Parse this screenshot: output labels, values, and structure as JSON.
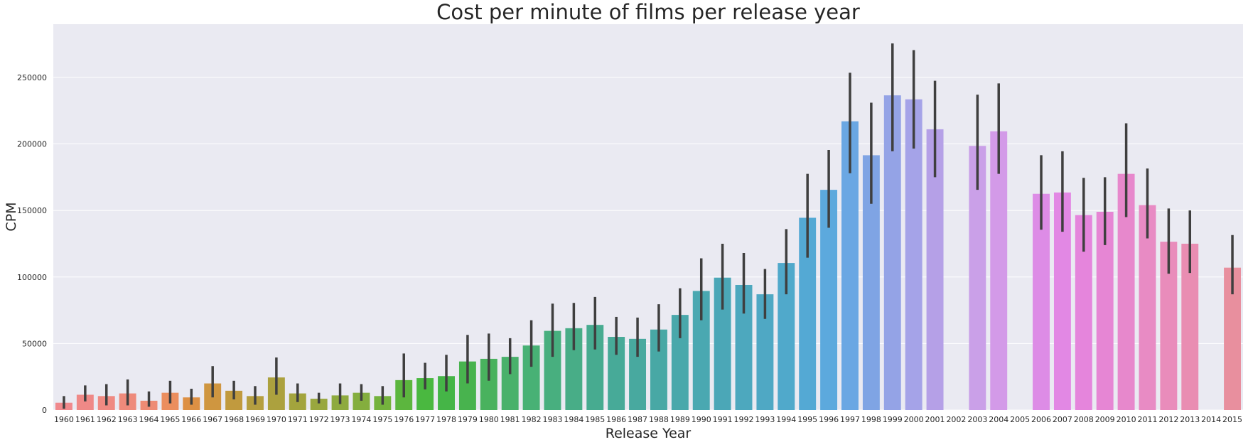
{
  "chart_data": {
    "type": "bar",
    "title": "Cost per minute of films per release year",
    "xlabel": "Release Year",
    "ylabel": "CPM",
    "ylim": [
      0,
      290000
    ],
    "yticks": [
      0,
      50000,
      100000,
      150000,
      200000,
      250000
    ],
    "grid": true,
    "legend": "none",
    "error_bars": true,
    "categories": [
      "1960",
      "1961",
      "1962",
      "1963",
      "1964",
      "1965",
      "1966",
      "1967",
      "1968",
      "1969",
      "1970",
      "1971",
      "1972",
      "1973",
      "1974",
      "1975",
      "1976",
      "1977",
      "1978",
      "1979",
      "1980",
      "1981",
      "1982",
      "1983",
      "1984",
      "1985",
      "1986",
      "1987",
      "1988",
      "1989",
      "1990",
      "1991",
      "1992",
      "1993",
      "1994",
      "1995",
      "1996",
      "1997",
      "1998",
      "1999",
      "2000",
      "2001",
      "2002",
      "2003",
      "2004",
      "2005",
      "2006",
      "2007",
      "2008",
      "2009",
      "2010",
      "2011",
      "2012",
      "2013",
      "2014",
      "2015"
    ],
    "values": [
      5500,
      11500,
      10500,
      12500,
      7000,
      13000,
      9500,
      20000,
      14500,
      10500,
      24500,
      12500,
      8500,
      11000,
      13000,
      10500,
      22500,
      24000,
      25500,
      36500,
      38500,
      40000,
      48500,
      59500,
      61500,
      64000,
      55000,
      53500,
      60500,
      71500,
      89500,
      99500,
      94000,
      87000,
      110500,
      144500,
      165500,
      217000,
      191500,
      236500,
      233500,
      211000,
      null,
      198500,
      209500,
      null,
      162500,
      163500,
      146500,
      149000,
      177500,
      154000,
      126500,
      125000,
      null,
      107000
    ],
    "error_low": [
      1000,
      6500,
      3500,
      3500,
      2500,
      5000,
      4000,
      9500,
      8000,
      4000,
      11500,
      6000,
      5000,
      4500,
      7000,
      4000,
      9500,
      15500,
      14000,
      20000,
      22000,
      27000,
      32500,
      40000,
      45000,
      45500,
      41500,
      40000,
      44000,
      54000,
      67500,
      75500,
      72500,
      68500,
      87000,
      114500,
      137000,
      178000,
      155000,
      194500,
      196500,
      175000,
      null,
      165500,
      177500,
      null,
      135500,
      134000,
      119000,
      124000,
      145000,
      129000,
      102500,
      103000,
      null,
      87000
    ],
    "error_high": [
      10500,
      18500,
      19500,
      23000,
      14000,
      22000,
      16000,
      33000,
      22000,
      18000,
      39500,
      20000,
      13000,
      20000,
      19500,
      18000,
      42500,
      35500,
      41500,
      56500,
      57500,
      54000,
      67500,
      80000,
      80500,
      85000,
      70000,
      69500,
      79500,
      91500,
      114000,
      125000,
      118000,
      106000,
      136000,
      177500,
      195500,
      253500,
      231000,
      275500,
      270500,
      247500,
      null,
      237000,
      245500,
      null,
      191500,
      194500,
      174500,
      175000,
      215500,
      181500,
      151500,
      150000,
      null,
      131500
    ],
    "colors": [
      "#f0898d",
      "#ef8987",
      "#ef8a82",
      "#ee8a7b",
      "#ee8b74",
      "#eb8e5e",
      "#dd9044",
      "#cf9640",
      "#c19a3e",
      "#b59e40",
      "#aca13e",
      "#a3a43d",
      "#99a73e",
      "#8eaa3e",
      "#84ae3e",
      "#74b23d",
      "#5cb63e",
      "#4ab840",
      "#45b547",
      "#48b34e",
      "#49b25e",
      "#49b16b",
      "#48b175",
      "#48af7f",
      "#48ad87",
      "#47ab90",
      "#47aa98",
      "#48a99f",
      "#48a8a5",
      "#49a8ab",
      "#4aa8b1",
      "#4ba7b7",
      "#4da8be",
      "#4fa8c4",
      "#50a9cb",
      "#54a9d4",
      "#5ca9dd",
      "#6aa7e3",
      "#7fa4e4",
      "#94a3e6",
      "#a5a3e8",
      "#b5a0e7",
      "#c09ee6",
      "#caa0e8",
      "#d39ae8",
      "#d993e8",
      "#dd8ce6",
      "#e288e4",
      "#e585dc",
      "#e686d4",
      "#e788cc",
      "#e88bc4",
      "#e98cbb",
      "#e98db2",
      "#e98ea9",
      "#e88f9e"
    ]
  }
}
